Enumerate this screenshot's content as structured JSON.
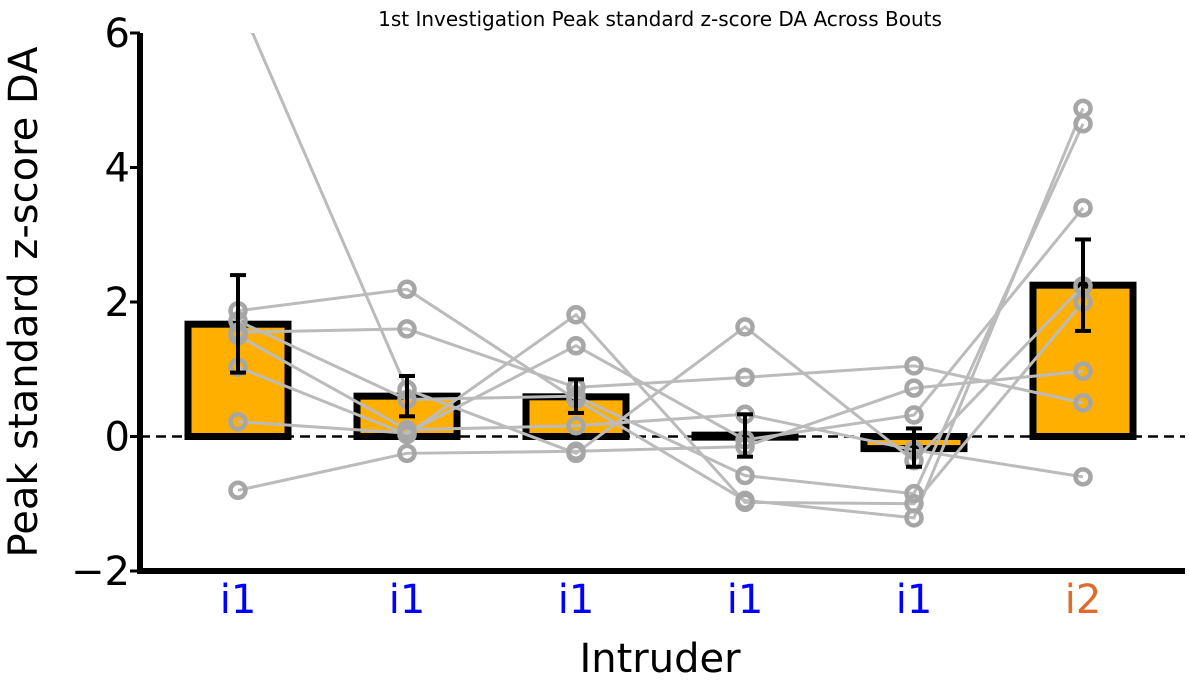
{
  "chart_data": {
    "type": "bar",
    "title": "1st Investigation Peak standard z-score DA Across Bouts",
    "xlabel": "Intruder",
    "ylabel": "Peak standard z-score DA",
    "ylim": [
      -2,
      6
    ],
    "yticks": [
      -2,
      0,
      2,
      4,
      6
    ],
    "ytick_labels": [
      "−2",
      "0",
      "2",
      "4",
      "6"
    ],
    "categories": [
      "i1",
      "i1",
      "i1",
      "i1",
      "i1",
      "i2"
    ],
    "category_colors": [
      "#0000ff",
      "#0000ff",
      "#0000ff",
      "#0000ff",
      "#0000ff",
      "#e06c2b"
    ],
    "bar_values": [
      1.67,
      0.6,
      0.59,
      0.02,
      -0.18,
      2.25
    ],
    "error_bars": [
      {
        "low": 0.95,
        "high": 2.4
      },
      {
        "low": 0.3,
        "high": 0.9
      },
      {
        "low": 0.35,
        "high": 0.85
      },
      {
        "low": -0.3,
        "high": 0.33
      },
      {
        "low": -0.45,
        "high": 0.12
      },
      {
        "low": 1.57,
        "high": 2.93
      }
    ],
    "subjects": [
      [
        6.5,
        0.7,
        -0.25,
        1.63,
        -0.36,
        2.24
      ],
      [
        1.87,
        2.19,
        0.55,
        -0.95,
        -1.21,
        4.88
      ],
      [
        1.55,
        1.6,
        0.73,
        0.88,
        1.05,
        0.5
      ],
      [
        1.72,
        0.55,
        0.6,
        -0.58,
        -0.85,
        4.65
      ],
      [
        1.03,
        0.03,
        1.81,
        -0.98,
        -1.0,
        2.0
      ],
      [
        0.22,
        0.05,
        1.35,
        -0.05,
        0.32,
        3.4
      ],
      [
        -0.8,
        -0.25,
        -0.22,
        -0.15,
        0.72,
        0.97
      ],
      [
        1.5,
        0.1,
        0.16,
        0.33,
        -0.2,
        -0.6
      ]
    ],
    "reference_line": 0,
    "grid": false,
    "colors": {
      "bar_fill": "#ffaf00",
      "bar_edge": "#000000",
      "subject_line": "#bbbbbb",
      "subject_marker": "#a6a6a6",
      "error_bar": "#000000",
      "axis": "#000000"
    }
  }
}
